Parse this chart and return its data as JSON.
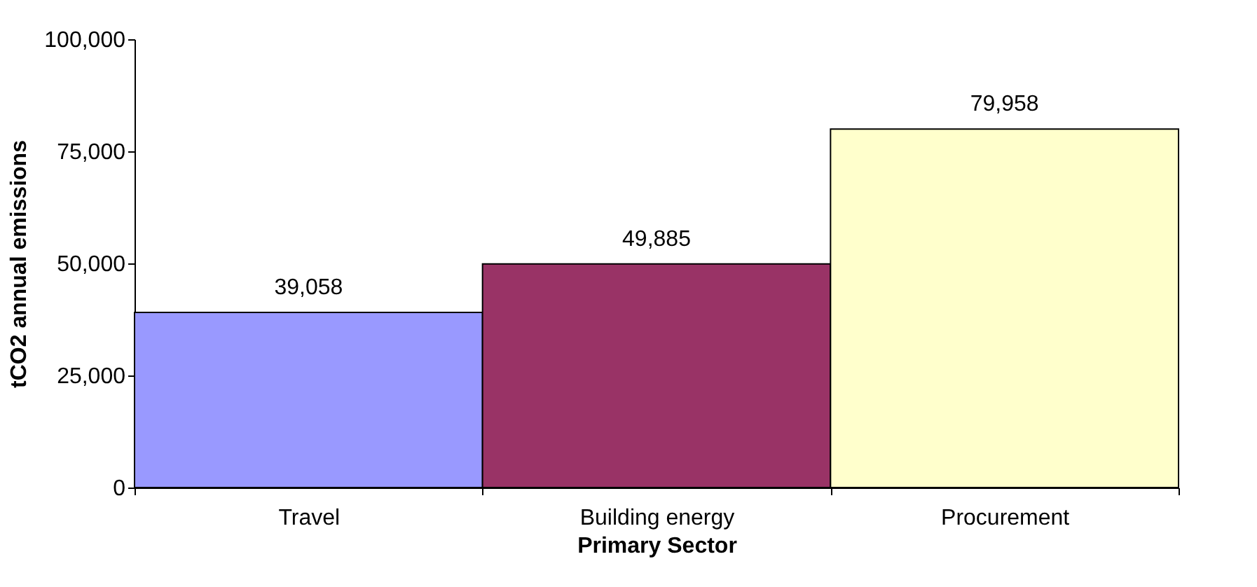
{
  "chart_data": {
    "type": "bar",
    "xlabel": "Primary Sector",
    "ylabel": "tCO2 annual emissions",
    "categories": [
      "Travel",
      "Building energy",
      "Procurement"
    ],
    "values": [
      39058,
      49885,
      79958
    ],
    "colors": [
      "#9999ff",
      "#993366",
      "#ffffcc"
    ],
    "value_labels": [
      "39,058",
      "49,885",
      "79,958"
    ],
    "ylim": [
      0,
      100000
    ],
    "yticks": [
      0,
      {
        "value": 25000,
        "label": "25,000"
      },
      {
        "value": 50000,
        "label": "50,000"
      },
      {
        "value": 75000,
        "label": "75,000"
      },
      {
        "value": 100000,
        "label": "100,000"
      }
    ],
    "grid": false
  }
}
